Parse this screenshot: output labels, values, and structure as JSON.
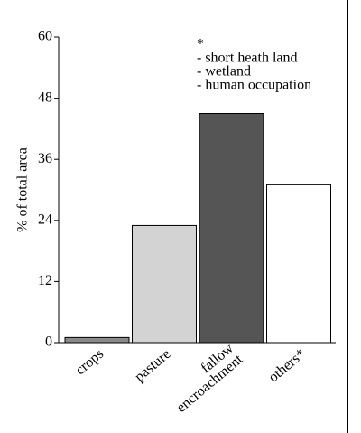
{
  "chart_data": {
    "type": "bar",
    "y_label": "% of total area",
    "categories": [
      "crops",
      "pasture",
      "fallow encroachment",
      "others*"
    ],
    "values": [
      1,
      23,
      45,
      31
    ],
    "colors": [
      "#8a8a8a",
      "#d3d3d3",
      "#555555",
      "#ffffff"
    ],
    "ylim": [
      0,
      60
    ],
    "yticks": [
      0,
      12,
      24,
      36,
      48,
      60
    ],
    "annotation": [
      "*",
      "- short heath land",
      "- wetland",
      "- human occupation"
    ]
  }
}
